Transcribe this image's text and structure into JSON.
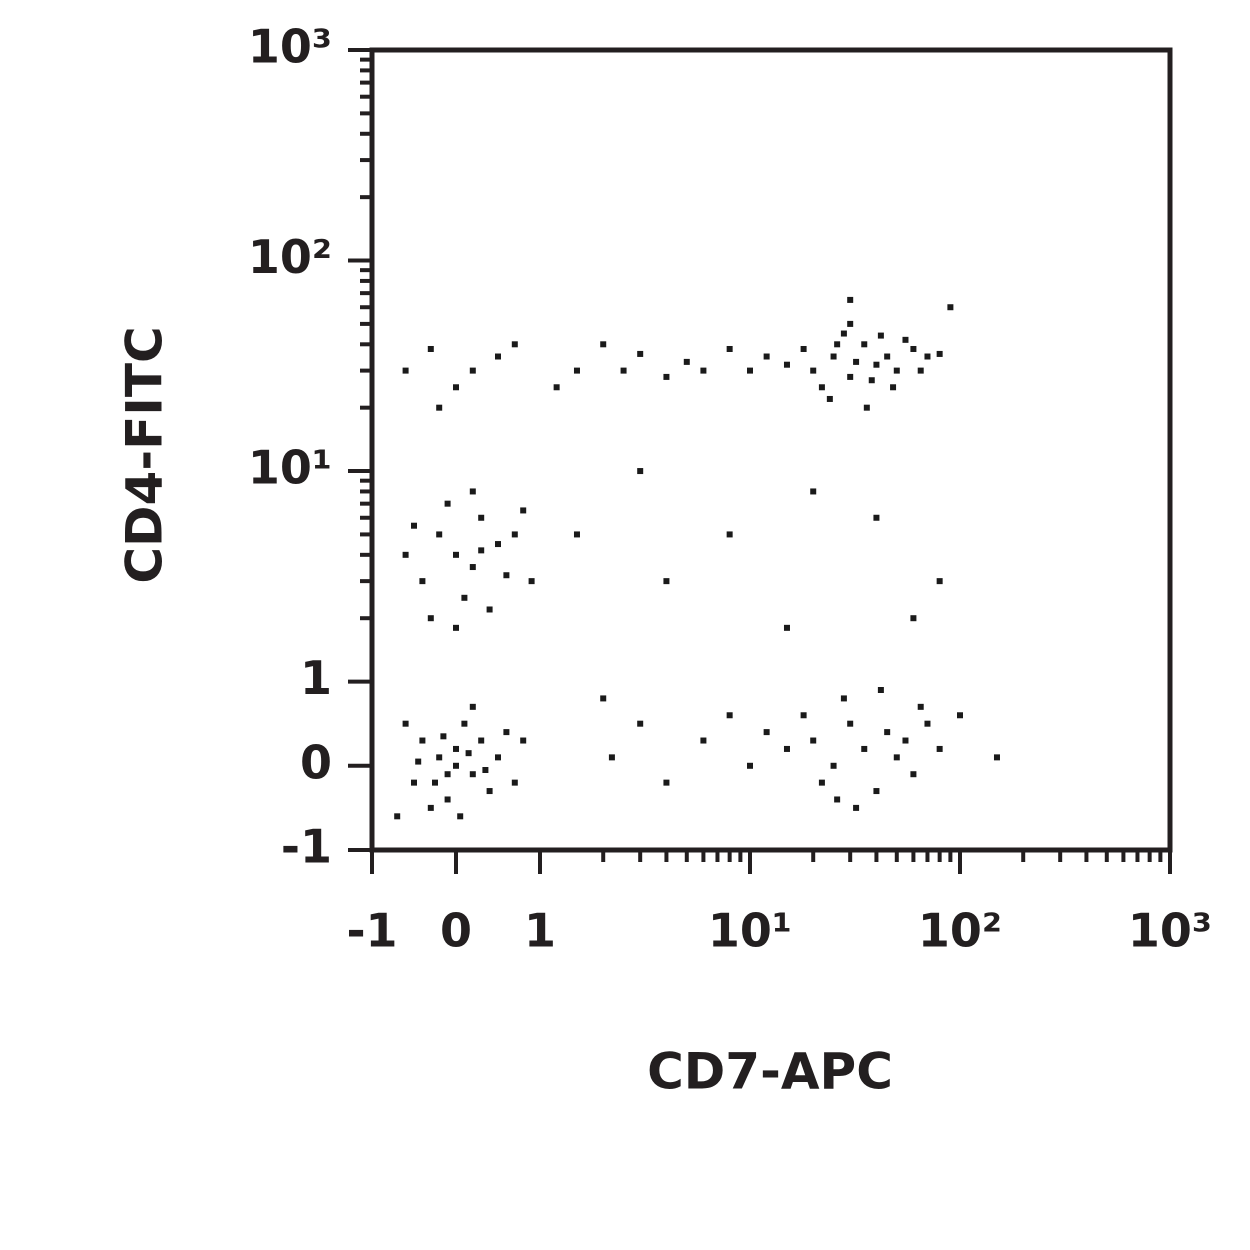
{
  "chart_data": {
    "type": "scatter",
    "xlabel": "CD7-APC",
    "ylabel": "CD4-FITC",
    "xscale": "biexponential",
    "yscale": "biexponential",
    "xlim": [
      -1,
      1000
    ],
    "ylim": [
      -1,
      1000
    ],
    "xticks": [
      -1,
      0,
      1,
      {
        "value": 10,
        "label": "10¹"
      },
      {
        "value": 100,
        "label": "10²"
      },
      {
        "value": 1000,
        "label": "10³"
      }
    ],
    "yticks": [
      -1,
      0,
      1,
      {
        "value": 10,
        "label": "10¹"
      },
      {
        "value": 100,
        "label": "10²"
      },
      {
        "value": 1000,
        "label": "10³"
      }
    ],
    "xminorticks": [
      2,
      3,
      4,
      5,
      6,
      7,
      8,
      9,
      20,
      30,
      40,
      50,
      60,
      70,
      80,
      90,
      200,
      300,
      400,
      500,
      600,
      700,
      800,
      900
    ],
    "yminorticks": [
      2,
      3,
      4,
      5,
      6,
      7,
      8,
      9,
      20,
      30,
      40,
      50,
      60,
      70,
      80,
      90,
      200,
      300,
      400,
      500,
      600,
      700,
      800,
      900
    ],
    "color": "#1a1a1a",
    "x": [
      0,
      -0.2,
      0.2,
      -0.4,
      0.3,
      -0.1,
      0.1,
      0.5,
      -0.5,
      0.4,
      -0.3,
      0.2,
      -0.6,
      0.6,
      0,
      -0.1,
      0.15,
      -0.25,
      0.35,
      -0.45,
      0.7,
      -0.7,
      0.05,
      0.8,
      -0.15,
      0,
      0.2,
      -0.2,
      0.3,
      -0.4,
      0.5,
      0.1,
      -0.1,
      0.4,
      -0.5,
      0.6,
      0.2,
      -0.3,
      0.7,
      0.9,
      0,
      -0.6,
      0.3,
      1.5,
      0.8,
      20,
      25,
      30,
      35,
      40,
      18,
      22,
      28,
      45,
      50,
      60,
      55,
      70,
      32,
      38,
      15,
      26,
      42,
      65,
      80,
      24,
      36,
      48,
      30,
      12,
      10,
      8,
      6,
      5,
      4,
      3,
      2.5,
      2,
      1.5,
      1.2,
      0.5,
      0.2,
      -0.3,
      -0.6,
      0,
      0.7,
      -0.2,
      90,
      30,
      20,
      25,
      30,
      35,
      40,
      45,
      50,
      18,
      22,
      28,
      55,
      60,
      70,
      15,
      12,
      10,
      8,
      6,
      4,
      3,
      80,
      100,
      150,
      32,
      42,
      26,
      65,
      2.2,
      4,
      8,
      20,
      40,
      60,
      3,
      15,
      80,
      2
    ],
    "values": [
      0,
      0.1,
      -0.1,
      0.3,
      0.3,
      -0.4,
      0.5,
      0.1,
      -0.2,
      -0.3,
      -0.5,
      0.7,
      0.5,
      0.4,
      0.2,
      -0.1,
      0.15,
      -0.2,
      -0.05,
      0.05,
      -0.2,
      -0.6,
      -0.6,
      0.3,
      0.35,
      4,
      3.5,
      5,
      6,
      3,
      4.5,
      2.5,
      7,
      2.2,
      5.5,
      3.2,
      8,
      2,
      5,
      3,
      1.8,
      4,
      4.2,
      5,
      6.5,
      30,
      35,
      28,
      40,
      32,
      38,
      25,
      45,
      35,
      30,
      38,
      42,
      35,
      33,
      27,
      32,
      40,
      44,
      30,
      36,
      22,
      20,
      25,
      50,
      35,
      30,
      38,
      30,
      33,
      28,
      36,
      30,
      40,
      30,
      25,
      35,
      30,
      38,
      30,
      25,
      40,
      20,
      60,
      65,
      0.3,
      0,
      0.5,
      0.2,
      -0.3,
      0.4,
      0.1,
      0.6,
      -0.2,
      0.8,
      0.3,
      -0.1,
      0.5,
      0.2,
      0.4,
      0,
      0.6,
      0.3,
      -0.2,
      0.5,
      0.2,
      0.6,
      0.1,
      -0.5,
      0.9,
      -0.4,
      0.7,
      0.1,
      3,
      5,
      8,
      6,
      2,
      10,
      1.8,
      3,
      0.8
    ]
  }
}
